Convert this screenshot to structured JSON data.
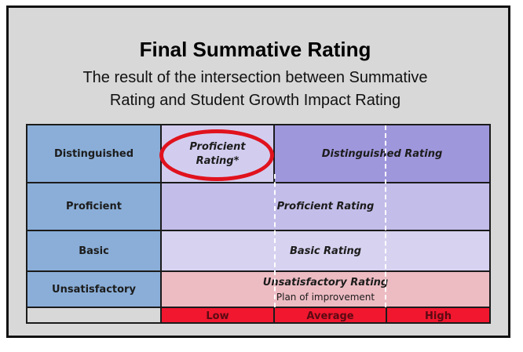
{
  "title": "Final Summative Rating",
  "subtitle_line1": "The result of the intersection between Summative",
  "subtitle_line2": "Rating and Student Growth Impact Rating",
  "rows": {
    "distinguished": "Distinguished",
    "proficient": "Proficient",
    "basic": "Basic",
    "unsatisfactory": "Unsatisfactory"
  },
  "cells": {
    "proficient_star_line1": "Proficient",
    "proficient_star_line2": "Rating*",
    "distinguished_rating": "Distinguished Rating",
    "proficient_rating": "Proficient Rating",
    "basic_rating": "Basic Rating",
    "unsatisfactory_rating": "Unsatisfactory Rating",
    "plan_of_improvement": "Plan of improvement"
  },
  "growth_levels": [
    "Low",
    "Average",
    "High"
  ],
  "colors": {
    "row_label_bg": "#8aaed8",
    "distinguished_bg": "#9f97dc",
    "proficient_bg": "#c3bde9",
    "basic_bg": "#d7d2f0",
    "unsatisfactory_bg": "#edbcc3",
    "growth_bar_bg": "#f0172f",
    "highlight_circle": "#e0121e"
  }
}
